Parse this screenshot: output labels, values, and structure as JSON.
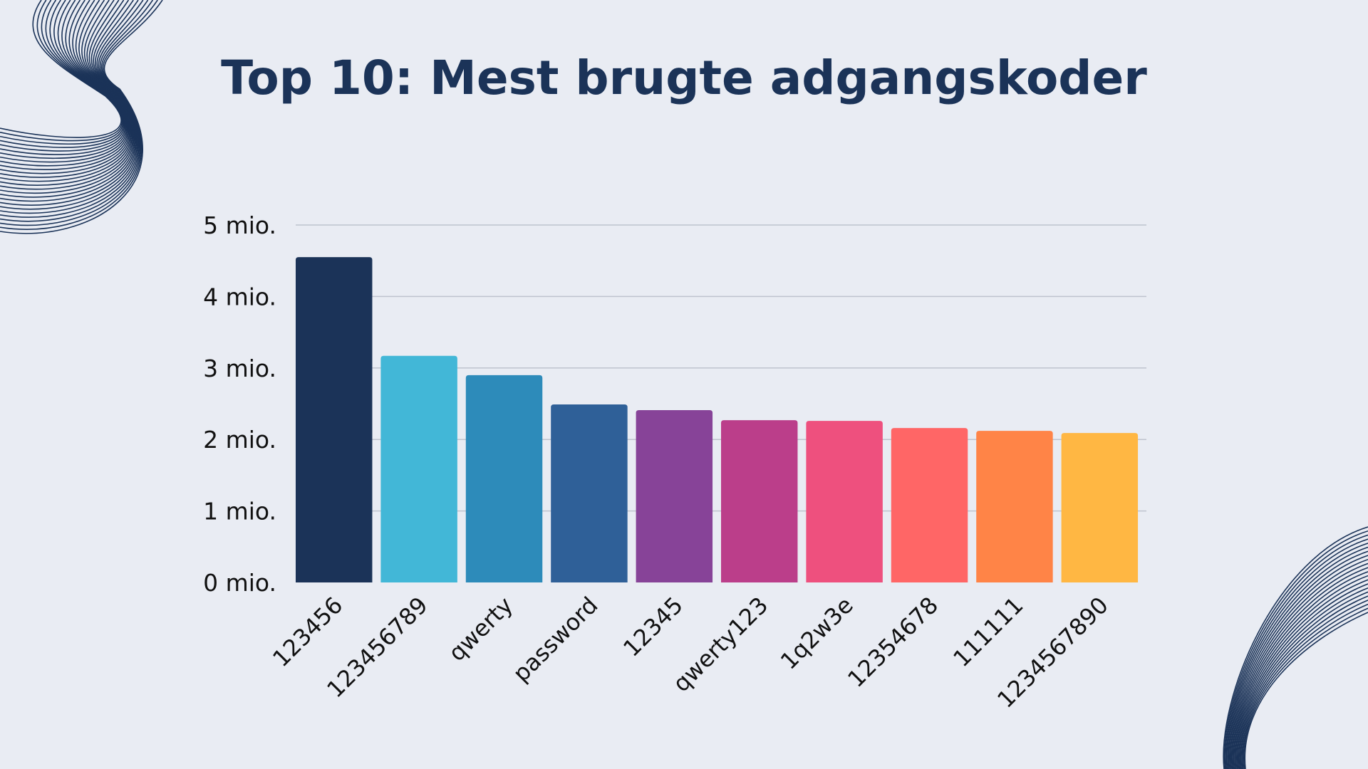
{
  "chart_data": {
    "type": "bar",
    "title": "Top 10: Mest brugte adgangskoder",
    "xlabel": "",
    "ylabel": "",
    "categories": [
      "123456",
      "123456789",
      "qwerty",
      "password",
      "12345",
      "qwerty123",
      "1q2w3e",
      "12354678",
      "111111",
      "1234567890"
    ],
    "values": [
      4.55,
      3.17,
      2.9,
      2.49,
      2.41,
      2.27,
      2.26,
      2.16,
      2.12,
      2.09
    ],
    "colors": [
      "#1B3358",
      "#42B7D7",
      "#2D8BBA",
      "#2F6098",
      "#874398",
      "#BB3E8A",
      "#EE507E",
      "#FF6666",
      "#FF8447",
      "#FFB743"
    ],
    "ylim": [
      0,
      5
    ],
    "yticks": [
      0,
      1,
      2,
      3,
      4,
      5
    ],
    "ytick_labels": [
      "0 mio.",
      "1 mio.",
      "2 mio.",
      "3 mio.",
      "4 mio.",
      "5 mio."
    ],
    "grid": true,
    "legend": "none"
  },
  "theme": {
    "background": "#E9ECF3",
    "title_color": "#1B3358",
    "decoration_color": "#1B3358"
  }
}
